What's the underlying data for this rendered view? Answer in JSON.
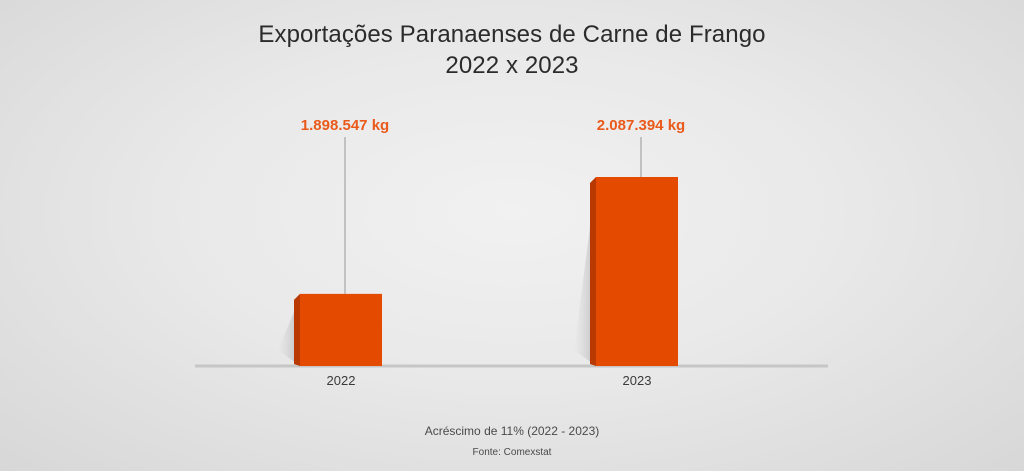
{
  "title": "Exportações Paranaenses de Carne de Frango",
  "subtitle": "2022 x 2023",
  "note": "Acréscimo de 11% (2022 - 2023)",
  "source": "Fonte: Comexstat",
  "colors": {
    "bar": "#e54b00",
    "bar_edge": "#b83a02",
    "label": "#ea5a1a",
    "baseline": "#c6c6c6",
    "tick_text": "#3a3a3a"
  },
  "chart_data": {
    "type": "bar",
    "categories": [
      "2022",
      "2023"
    ],
    "values": [
      1898547,
      2087394
    ],
    "data_labels": [
      "1.898.547 kg",
      "2.087.394 kg"
    ],
    "title": "Exportações Paranaenses de Carne de Frango",
    "subtitle": "2022 x 2023",
    "xlabel": "",
    "ylabel": "",
    "grid": false,
    "legend": "none"
  }
}
